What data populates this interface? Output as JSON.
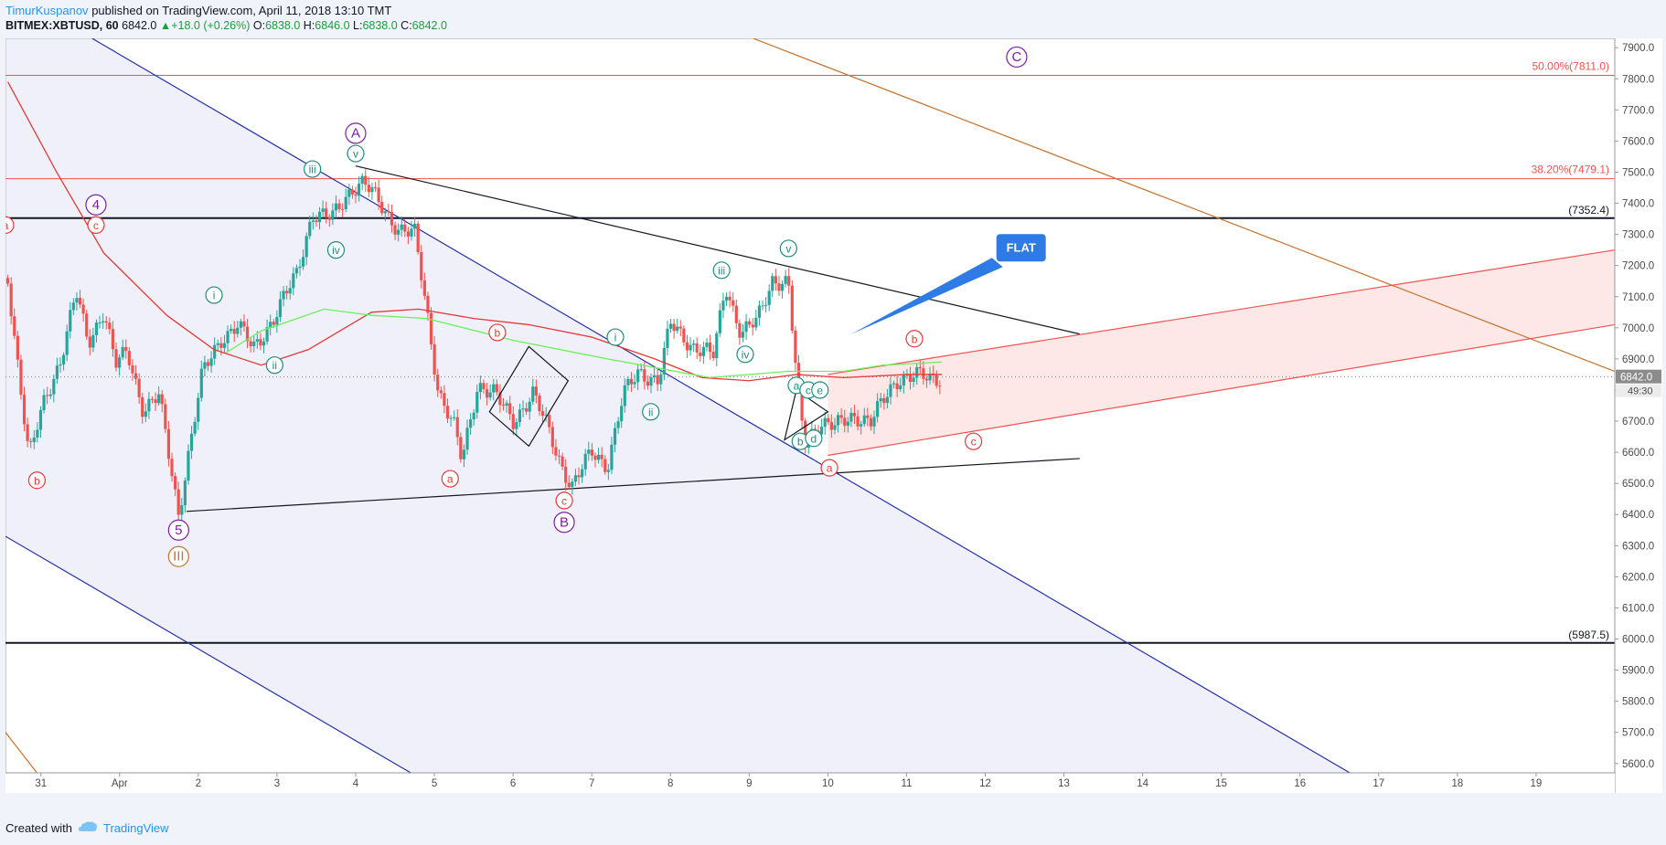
{
  "header": {
    "author": "TimurKuspanov",
    "published": "published on TradingView.com, April 11, 2018 13:10 TMT",
    "symbol": "BITMEX:XBTUSD, 60",
    "last": "6842.0",
    "change": "+18.0 (+0.26%)",
    "o_label": "O:",
    "o": "6838.0",
    "h_label": "H:",
    "h": "6846.0",
    "l_label": "L:",
    "l": "6838.0",
    "c_label": "C:",
    "c": "6842.0"
  },
  "footer": {
    "created_with": "Created with",
    "brand": "TradingView"
  },
  "colors": {
    "up": "#26a69a",
    "down": "#ef5350",
    "red_line": "#e53935",
    "green_line": "#69f05b",
    "blue_line": "#2431a8",
    "brown_line": "#c6732d",
    "fib": "#ef5350",
    "wave_red": "#e53935",
    "wave_purple": "#7b1fa2",
    "wave_teal": "#1e8c7e",
    "wave_orange": "#c6732d",
    "flat": "#2e7be6"
  },
  "chart_data": {
    "type": "candlestick",
    "symbol": "BITMEX:XBTUSD",
    "interval": "60",
    "yaxis_ticks": [
      7900,
      7800,
      7700,
      7600,
      7500,
      7400,
      7300,
      7200,
      7100,
      7000,
      6900,
      6800,
      6700,
      6600,
      6500,
      6400,
      6300,
      6200,
      6100,
      6000,
      5900,
      5800,
      5700,
      5600
    ],
    "ylim": [
      5570,
      7930
    ],
    "xaxis_ticks": [
      "31",
      "Apr",
      "2",
      "3",
      "4",
      "5",
      "6",
      "7",
      "8",
      "9",
      "10",
      "11",
      "12",
      "13",
      "14",
      "15",
      "16",
      "17",
      "18",
      "19"
    ],
    "xaxis_ticks_x": [
      -1,
      0,
      1,
      2,
      3,
      4,
      5,
      6,
      7,
      8,
      9,
      10,
      11,
      12,
      13,
      14,
      15,
      16,
      17,
      18
    ],
    "xlim": [
      -1.45,
      19.0
    ],
    "last_price": "6842.0",
    "countdown": "49:30",
    "fib_levels": [
      {
        "label": "50.00%(7811.0)",
        "value": 7811.0
      },
      {
        "label": "38.20%(7479.1)",
        "value": 7479.1
      }
    ],
    "horizontal_levels": [
      {
        "label": "(7352.4)",
        "value": 7352.4
      },
      {
        "label": "(5987.5)",
        "value": 5987.5
      }
    ],
    "price_path": [
      [
        -1.42,
        7160
      ],
      [
        -1.3,
        6900
      ],
      [
        -1.15,
        6580
      ],
      [
        -0.95,
        6770
      ],
      [
        -0.75,
        6900
      ],
      [
        -0.55,
        7110
      ],
      [
        -0.4,
        6950
      ],
      [
        -0.2,
        7060
      ],
      [
        -0.05,
        6880
      ],
      [
        0.1,
        6920
      ],
      [
        0.3,
        6740
      ],
      [
        0.5,
        6780
      ],
      [
        0.75,
        6400
      ],
      [
        0.85,
        6560
      ],
      [
        1.05,
        6850
      ],
      [
        1.3,
        6970
      ],
      [
        1.5,
        7010
      ],
      [
        1.7,
        6930
      ],
      [
        1.95,
        7030
      ],
      [
        2.25,
        7170
      ],
      [
        2.45,
        7370
      ],
      [
        2.7,
        7350
      ],
      [
        2.95,
        7450
      ],
      [
        3.1,
        7470
      ],
      [
        3.35,
        7380
      ],
      [
        3.55,
        7320
      ],
      [
        3.75,
        7300
      ],
      [
        3.9,
        7060
      ],
      [
        4.05,
        6800
      ],
      [
        4.25,
        6680
      ],
      [
        4.35,
        6570
      ],
      [
        4.55,
        6820
      ],
      [
        4.75,
        6790
      ],
      [
        5.0,
        6700
      ],
      [
        5.25,
        6790
      ],
      [
        5.45,
        6670
      ],
      [
        5.6,
        6570
      ],
      [
        5.75,
        6490
      ],
      [
        6.0,
        6600
      ],
      [
        6.2,
        6560
      ],
      [
        6.4,
        6780
      ],
      [
        6.6,
        6860
      ],
      [
        6.85,
        6830
      ],
      [
        7.0,
        7010
      ],
      [
        7.3,
        6940
      ],
      [
        7.55,
        6910
      ],
      [
        7.7,
        7140
      ],
      [
        7.9,
        6980
      ],
      [
        8.1,
        7020
      ],
      [
        8.3,
        7160
      ],
      [
        8.5,
        7140
      ],
      [
        8.6,
        6840
      ],
      [
        8.7,
        6630
      ],
      [
        8.9,
        6700
      ],
      [
        9.1,
        6680
      ],
      [
        9.35,
        6720
      ],
      [
        9.55,
        6700
      ],
      [
        9.75,
        6780
      ],
      [
        9.9,
        6840
      ],
      [
        10.1,
        6850
      ],
      [
        10.3,
        6830
      ],
      [
        10.45,
        6842
      ]
    ],
    "moving_averages": [
      {
        "color": "#e53935",
        "points": [
          [
            -1.42,
            7790
          ],
          [
            -0.8,
            7500
          ],
          [
            -0.2,
            7240
          ],
          [
            0.6,
            7040
          ],
          [
            1.2,
            6930
          ],
          [
            1.8,
            6880
          ],
          [
            2.4,
            6930
          ],
          [
            3.2,
            7050
          ],
          [
            3.8,
            7060
          ],
          [
            4.5,
            7030
          ],
          [
            5.2,
            7010
          ],
          [
            6.0,
            6970
          ],
          [
            6.8,
            6900
          ],
          [
            7.4,
            6840
          ],
          [
            8.0,
            6830
          ],
          [
            8.6,
            6850
          ],
          [
            9.2,
            6840
          ],
          [
            10.0,
            6850
          ],
          [
            10.45,
            6850
          ]
        ]
      },
      {
        "color": "#69f05b",
        "points": [
          [
            1.35,
            6920
          ],
          [
            1.8,
            6990
          ],
          [
            2.6,
            7060
          ],
          [
            3.2,
            7040
          ],
          [
            3.9,
            7030
          ],
          [
            5.0,
            6960
          ],
          [
            6.2,
            6900
          ],
          [
            7.5,
            6840
          ],
          [
            8.5,
            6860
          ],
          [
            9.2,
            6860
          ],
          [
            9.7,
            6880
          ],
          [
            10.45,
            6890
          ]
        ]
      }
    ],
    "trend_lines": [
      {
        "color": "#2431a8",
        "from": [
          -0.35,
          7930
        ],
        "to": [
          15.7,
          5560
        ]
      },
      {
        "color": "#2431a8",
        "from": [
          -1.45,
          6330
        ],
        "to": [
          3.7,
          5570
        ]
      },
      {
        "color": "#131722",
        "from": [
          3.0,
          7520
        ],
        "to": [
          12.2,
          6980
        ]
      },
      {
        "color": "#131722",
        "from": [
          0.85,
          6410
        ],
        "to": [
          12.2,
          6580
        ]
      },
      {
        "color": "#c6732d",
        "from": [
          8.05,
          7930
        ],
        "to": [
          19.0,
          6860
        ]
      },
      {
        "color": "#c6732d",
        "from": [
          -1.45,
          5700
        ],
        "to": [
          -1.05,
          5570
        ]
      },
      {
        "color": "#ef5350",
        "from": [
          9.0,
          6590
        ],
        "to": [
          19.0,
          7010
        ]
      },
      {
        "color": "#ef5350",
        "from": [
          9.0,
          6850
        ],
        "to": [
          19.0,
          7250
        ]
      }
    ],
    "shapes": [
      {
        "type": "rhombus",
        "points": [
          [
            5.2,
            6940
          ],
          [
            5.7,
            6830
          ],
          [
            5.2,
            6620
          ],
          [
            4.7,
            6730
          ]
        ]
      },
      {
        "type": "triangle",
        "points": [
          [
            8.6,
            6800
          ],
          [
            8.45,
            6640
          ],
          [
            9.0,
            6730
          ]
        ]
      }
    ],
    "callout": {
      "text": "FLAT",
      "tip": [
        9.3,
        6980
      ],
      "box_x": 11.2,
      "box_y": 7260
    },
    "wave_labels": [
      {
        "t": "A",
        "x": 3.0,
        "y": 7625,
        "c": "purple"
      },
      {
        "t": "v",
        "x": 3.0,
        "y": 7560,
        "c": "teal"
      },
      {
        "t": "iii",
        "x": 2.45,
        "y": 7510,
        "c": "teal"
      },
      {
        "t": "iv",
        "x": 2.75,
        "y": 7250,
        "c": "teal"
      },
      {
        "t": "4",
        "x": -0.3,
        "y": 7395,
        "c": "purple"
      },
      {
        "t": "c",
        "x": -0.3,
        "y": 7330,
        "c": "red"
      },
      {
        "t": "a",
        "x": -1.45,
        "y": 7330,
        "c": "red"
      },
      {
        "t": "i",
        "x": 1.2,
        "y": 7105,
        "c": "teal"
      },
      {
        "t": "ii",
        "x": 1.97,
        "y": 6880,
        "c": "teal"
      },
      {
        "t": "b",
        "x": -1.05,
        "y": 6510,
        "c": "red"
      },
      {
        "t": "5",
        "x": 0.75,
        "y": 6350,
        "c": "purple"
      },
      {
        "t": "III",
        "x": 0.75,
        "y": 6265,
        "c": "orange"
      },
      {
        "t": "b",
        "x": 4.8,
        "y": 6985,
        "c": "red"
      },
      {
        "t": "a",
        "x": 4.2,
        "y": 6515,
        "c": "red"
      },
      {
        "t": "c",
        "x": 5.65,
        "y": 6445,
        "c": "red"
      },
      {
        "t": "B",
        "x": 5.65,
        "y": 6375,
        "c": "purple"
      },
      {
        "t": "i",
        "x": 6.3,
        "y": 6970,
        "c": "teal"
      },
      {
        "t": "ii",
        "x": 6.75,
        "y": 6730,
        "c": "teal"
      },
      {
        "t": "iii",
        "x": 7.65,
        "y": 7185,
        "c": "teal"
      },
      {
        "t": "iv",
        "x": 7.95,
        "y": 6915,
        "c": "teal"
      },
      {
        "t": "v",
        "x": 8.5,
        "y": 7255,
        "c": "teal"
      },
      {
        "t": "C",
        "x": 11.4,
        "y": 7870,
        "c": "purple"
      },
      {
        "t": "a",
        "x": 8.6,
        "y": 6815,
        "c": "teal"
      },
      {
        "t": "c",
        "x": 8.75,
        "y": 6800,
        "c": "teal"
      },
      {
        "t": "e",
        "x": 8.9,
        "y": 6800,
        "c": "teal"
      },
      {
        "t": "b",
        "x": 8.65,
        "y": 6635,
        "c": "teal"
      },
      {
        "t": "d",
        "x": 8.82,
        "y": 6645,
        "c": "teal"
      },
      {
        "t": "a",
        "x": 9.02,
        "y": 6550,
        "c": "red"
      },
      {
        "t": "b",
        "x": 10.1,
        "y": 6965,
        "c": "red"
      },
      {
        "t": "c",
        "x": 10.85,
        "y": 6635,
        "c": "red"
      }
    ]
  }
}
